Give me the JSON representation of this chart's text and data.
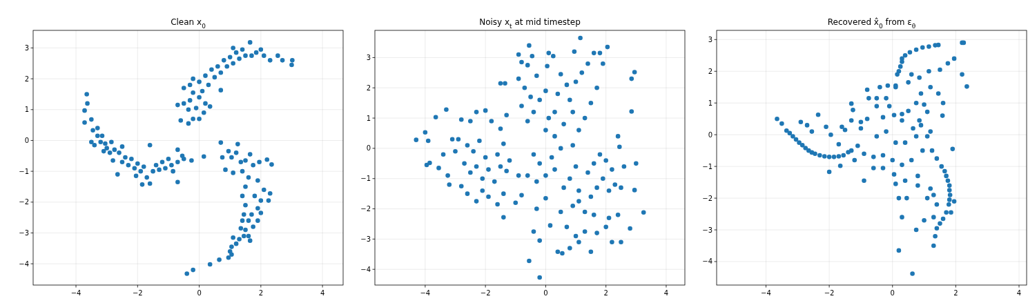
{
  "chart_data": [
    {
      "type": "scatter",
      "title": "Clean x$_{0}$",
      "marker": "circle",
      "grid": true,
      "xlim": [
        -5.39,
        4.67
      ],
      "ylim": [
        -4.69,
        3.57
      ],
      "xticks": [
        -4,
        -2,
        0,
        2,
        4
      ],
      "yticks": [
        -4,
        -3,
        -2,
        -1,
        0,
        1,
        2,
        3
      ],
      "color": "#1f77b4",
      "x": [
        -3.65,
        -3.63,
        -3.72,
        -3.72,
        -3.5,
        -3.45,
        -3.3,
        -3.3,
        -3.15,
        -3.5,
        -3.4,
        -3.2,
        -3.05,
        -3.0,
        -2.85,
        -3.1,
        -2.9,
        -2.75,
        -2.6,
        -2.8,
        -2.5,
        -2.4,
        -2.3,
        -2.2,
        -2.1,
        -2.0,
        -1.9,
        -1.8,
        -2.05,
        -1.85,
        -1.6,
        -1.7,
        -1.5,
        -1.4,
        -1.3,
        -1.2,
        -1.1,
        -1.0,
        -0.9,
        -0.85,
        -0.7,
        -0.7,
        -0.55,
        -0.5,
        -0.25,
        -0.7,
        -1.6,
        -2.5,
        -2.65,
        -0.35,
        -0.6,
        -0.2,
        0.0,
        -0.35,
        -0.1,
        0.15,
        -0.7,
        -0.5,
        -0.3,
        -0.2,
        0.0,
        0.2,
        0.35,
        -0.5,
        -0.3,
        -0.2,
        0.0,
        0.1,
        0.2,
        0.3,
        0.4,
        0.5,
        0.6,
        0.7,
        0.8,
        0.9,
        0.7,
        1.0,
        1.1,
        1.2,
        1.3,
        1.4,
        1.5,
        1.65,
        1.7,
        1.85,
        2.0,
        2.1,
        2.3,
        2.55,
        2.7,
        3.02,
        3.0,
        1.1,
        0.7,
        0.15,
        0.75,
        0.95,
        1.05,
        1.25,
        1.2,
        1.35,
        1.5,
        1.65,
        1.75,
        1.95,
        2.2,
        2.35,
        0.85,
        1.1,
        1.4,
        1.6,
        1.5,
        1.9,
        2.1,
        2.3,
        1.4,
        1.8,
        2.0,
        2.25,
        1.5,
        1.9,
        1.45,
        1.7,
        2.0,
        1.4,
        1.6,
        1.9,
        1.5,
        1.75,
        1.35,
        1.6,
        1.65,
        1.45,
        1.3,
        1.1,
        1.2,
        1.05,
        1.0,
        0.95,
        1.05,
        0.65,
        0.35,
        -0.2,
        -0.4
      ],
      "values": [
        1.5,
        1.2,
        0.97,
        0.58,
        0.68,
        0.33,
        0.4,
        0.15,
        0.15,
        -0.05,
        -0.15,
        -0.05,
        -0.1,
        -0.25,
        -0.05,
        -0.35,
        -0.4,
        -0.3,
        -0.4,
        -0.65,
        -0.7,
        -0.55,
        -0.8,
        -0.6,
        -0.9,
        -0.75,
        -1.0,
        -0.85,
        -1.15,
        -1.43,
        -1.4,
        -1.2,
        -1.0,
        -0.8,
        -0.95,
        -0.7,
        -0.9,
        -0.6,
        -0.8,
        -1.0,
        -0.7,
        -0.3,
        -0.5,
        -0.6,
        -0.65,
        -1.35,
        -0.15,
        -0.2,
        -1.1,
        0.55,
        0.65,
        0.7,
        0.7,
        1.0,
        1.05,
        0.9,
        1.15,
        1.2,
        1.3,
        1.55,
        1.4,
        1.2,
        1.1,
        1.7,
        1.8,
        2.0,
        1.9,
        1.6,
        2.1,
        1.8,
        2.3,
        2.05,
        2.4,
        2.2,
        2.6,
        2.4,
        1.63,
        2.7,
        2.5,
        2.85,
        2.65,
        2.95,
        2.75,
        3.18,
        2.75,
        2.85,
        2.95,
        2.75,
        2.6,
        2.75,
        2.6,
        2.6,
        2.45,
        3.0,
        -0.07,
        -0.52,
        -0.55,
        -0.35,
        -0.55,
        -0.12,
        -0.4,
        -0.7,
        -0.65,
        -0.45,
        -0.8,
        -0.7,
        -0.62,
        -0.78,
        -0.95,
        -1.05,
        -1.0,
        -1.2,
        -1.5,
        -1.3,
        -1.6,
        -1.72,
        -1.8,
        -1.8,
        -1.95,
        -1.95,
        -2.1,
        -2.2,
        -2.4,
        -2.4,
        -2.35,
        -2.6,
        -2.6,
        -2.6,
        -2.9,
        -2.8,
        -2.85,
        -3.1,
        -3.25,
        -3.1,
        -3.2,
        -3.15,
        -3.35,
        -3.45,
        -3.6,
        -3.8,
        -3.7,
        -3.87,
        -4.02,
        -4.2,
        -4.32
      ]
    },
    {
      "type": "scatter",
      "title": "Noisy x$_{t}$ at mid timestep",
      "marker": "circle",
      "grid": true,
      "xlim": [
        -5.67,
        4.62
      ],
      "ylim": [
        -4.52,
        3.9
      ],
      "xticks": [
        -4,
        -2,
        0,
        2,
        4
      ],
      "yticks": [
        -4,
        -3,
        -2,
        -1,
        0,
        1,
        2,
        3
      ],
      "color": "#1f77b4",
      "x": [
        -4.3,
        -4.0,
        -3.9,
        -3.95,
        -3.85,
        -3.65,
        -3.3,
        -3.55,
        -3.2,
        -3.25,
        -0.55,
        1.15,
        0.95,
        2.05,
        2.95,
        2.85,
        2.85,
        3.25,
        3.0,
        2.95,
        -0.2,
        -0.55,
        0.55,
        1.5,
        2.8,
        -1.4,
        -0.2,
        0.4,
        -2.8,
        -2.5,
        -2.3,
        -2.0,
        -1.8,
        -2.9,
        -2.6,
        -2.4,
        -2.2,
        -2.0,
        -1.6,
        -1.4,
        -1.2,
        -2.7,
        -2.5,
        -2.3,
        -2.1,
        -1.9,
        -1.7,
        -1.5,
        -1.3,
        -0.9,
        -2.8,
        -2.6,
        -2.3,
        -2.1,
        -1.9,
        -1.6,
        -1.4,
        -1.0,
        -0.8,
        -3.0,
        -3.4,
        -3.1,
        -1.5,
        -1.3,
        -1.5,
        -1.35,
        -0.9,
        -0.8,
        -0.6,
        -0.45,
        -0.9,
        -0.7,
        -0.5,
        -0.3,
        0.05,
        0.1,
        0.25,
        0.0,
        -0.2,
        0.4,
        0.5,
        0.7,
        0.8,
        0.3,
        0.1,
        -0.4,
        -0.8,
        -0.6,
        0.0,
        0.3,
        0.6,
        0.9,
        1.0,
        1.2,
        1.4,
        1.6,
        1.8,
        1.9,
        1.7,
        1.5,
        1.3,
        1.1,
        0.9,
        0.5,
        0.2,
        -0.2,
        -0.4,
        -0.6,
        -0.3,
        0.0,
        0.3,
        0.6,
        0.8,
        1.0,
        1.4,
        1.6,
        1.8,
        2.0,
        2.2,
        2.4,
        2.45,
        2.6,
        1.1,
        1.5,
        1.7,
        1.9,
        2.1,
        2.3,
        2.5,
        0.9,
        1.1,
        1.3,
        1.6,
        2.1,
        2.4,
        0.5,
        0.0,
        -0.3,
        0.7,
        1.0,
        1.3,
        1.7,
        2.0,
        2.2,
        2.5,
        0.8,
        1.1,
        -0.4,
        0.15
      ],
      "values": [
        0.28,
        0.53,
        0.25,
        -0.55,
        -0.48,
        1.03,
        1.28,
        -0.65,
        -1.2,
        -0.9,
        3.4,
        3.65,
        3.2,
        3.35,
        2.52,
        2.3,
        1.22,
        -2.12,
        -0.5,
        -1.38,
        -4.27,
        -3.72,
        -3.47,
        -3.42,
        -2.65,
        -2.28,
        -3.05,
        -3.42,
        0.95,
        0.9,
        1.2,
        1.25,
        0.9,
        0.3,
        0.1,
        -0.1,
        0.25,
        -0.3,
        -0.2,
        0.15,
        -0.4,
        -0.5,
        -0.8,
        -0.6,
        -1.0,
        -0.7,
        -1.1,
        -0.6,
        -0.75,
        -0.9,
        -1.25,
        -1.5,
        -1.75,
        -1.4,
        -1.6,
        -1.85,
        -1.5,
        -1.8,
        -1.55,
        -0.1,
        -0.2,
        0.3,
        0.65,
        1.1,
        2.15,
        2.15,
        2.3,
        2.85,
        2.75,
        3.05,
        3.1,
        2.0,
        1.7,
        2.4,
        2.72,
        3.15,
        3.05,
        1.9,
        1.6,
        1.8,
        2.45,
        2.1,
        1.6,
        1.2,
        1.0,
        1.2,
        1.4,
        0.9,
        0.6,
        0.4,
        0.8,
        1.2,
        2.2,
        2.5,
        2.8,
        3.15,
        3.15,
        2.8,
        2.0,
        1.5,
        1.0,
        0.6,
        0.1,
        0.0,
        -0.3,
        -0.5,
        -0.2,
        -0.9,
        -1.1,
        -0.9,
        -0.7,
        -1.3,
        -1.0,
        -0.6,
        -0.8,
        -0.5,
        -0.2,
        -0.4,
        -0.7,
        0.4,
        0.05,
        -0.6,
        -1.4,
        -1.6,
        -1.3,
        -1.0,
        -1.4,
        -1.2,
        -1.3,
        -1.9,
        -1.75,
        -2.1,
        -2.2,
        -2.3,
        -2.2,
        -2.1,
        -1.65,
        -2.0,
        -2.6,
        -2.9,
        -2.75,
        -2.8,
        -2.6,
        -3.1,
        -3.1,
        -3.3,
        -3.1,
        -2.75,
        -2.55
      ]
    },
    {
      "type": "scatter",
      "title": "Recovered x̂$_{0}$ from ε$_{θ}$",
      "marker": "circle",
      "grid": true,
      "xlim": [
        -5.56,
        4.24
      ],
      "ylim": [
        -4.74,
        3.29
      ],
      "xticks": [
        -4,
        -2,
        0,
        2,
        4
      ],
      "yticks": [
        -4,
        -3,
        -2,
        -1,
        0,
        1,
        2,
        3
      ],
      "color": "#1f77b4",
      "x": [
        -3.65,
        -3.5,
        -3.35,
        -3.25,
        -3.15,
        -3.05,
        -2.95,
        -2.85,
        -2.75,
        -2.65,
        -2.55,
        -2.45,
        -2.3,
        -2.15,
        -2.0,
        -1.85,
        -1.7,
        -1.55,
        -1.4,
        -1.3,
        0.1,
        0.2,
        0.3,
        0.4,
        0.55,
        0.75,
        0.95,
        1.15,
        1.35,
        1.45,
        0.15,
        0.25,
        0.3,
        1.25,
        1.4,
        1.55,
        1.7,
        1.8,
        1.82,
        1.78,
        1.7,
        1.6,
        1.5,
        1.4,
        1.35,
        1.3,
        1.75,
        1.8,
        1.8,
        1.65,
        2.2,
        2.25,
        2.2,
        2.35,
        1.95,
        1.75,
        1.5,
        1.15,
        1.2,
        0.85,
        0.6,
        0.5,
        0.1,
        -0.15,
        -0.4,
        -0.8,
        -0.5,
        -0.2,
        -0.75,
        -1.3,
        -1.25,
        -0.5,
        -0.1,
        0.05,
        0.3,
        0.5,
        0.75,
        0.9,
        1.0,
        1.1,
        1.45,
        1.6,
        1.58,
        0.85,
        0.9,
        0.65,
        0.3,
        -0.3,
        -0.8,
        -1.0,
        -1.3,
        -1.5,
        -1.0,
        -0.5,
        -0.2,
        0.1,
        0.4,
        0.75,
        1.1,
        1.2,
        0.95,
        0.6,
        0.3,
        0.0,
        -0.3,
        -0.6,
        -0.9,
        -1.1,
        -1.2,
        -0.9,
        -0.6,
        -0.3,
        0.05,
        0.1,
        0.4,
        0.8,
        0.8,
        1.2,
        1.3,
        1.1,
        0.2,
        0.45,
        0.3,
        0.75,
        1.0,
        1.3,
        1.4,
        0.2,
        0.63,
        1.9,
        1.95,
        1.85,
        -2.0,
        -2.35,
        -2.9,
        -2.1,
        -1.95,
        -1.6,
        -1.7,
        -2.7,
        -2.55,
        -1.65
      ],
      "values": [
        0.5,
        0.35,
        0.13,
        0.05,
        -0.05,
        -0.15,
        -0.25,
        -0.33,
        -0.42,
        -0.5,
        -0.56,
        -0.6,
        -0.65,
        -0.68,
        -0.7,
        -0.7,
        -0.68,
        -0.65,
        -0.55,
        -0.5,
        1.5,
        2.0,
        2.3,
        2.5,
        2.6,
        2.68,
        2.75,
        2.78,
        2.82,
        2.83,
        1.9,
        2.15,
        2.4,
        -0.5,
        -0.75,
        -1.0,
        -1.3,
        -1.6,
        -1.9,
        -2.2,
        -2.45,
        -2.65,
        -2.8,
        -2.95,
        -3.2,
        -3.5,
        -1.45,
        -1.75,
        -2.05,
        -1.15,
        2.9,
        2.9,
        1.9,
        1.52,
        2.4,
        2.25,
        2.05,
        2.0,
        1.5,
        1.8,
        1.9,
        1.65,
        1.55,
        1.55,
        1.5,
        1.42,
        1.15,
        1.15,
        1.15,
        0.98,
        0.78,
        0.9,
        0.9,
        0.62,
        0.65,
        0.75,
        1.0,
        1.3,
        0.95,
        0.72,
        1.3,
        1.0,
        0.6,
        0.45,
        0.3,
        0.2,
        0.45,
        0.55,
        0.5,
        0.4,
        0.45,
        0.15,
        0.2,
        -0.05,
        0.1,
        -0.25,
        -0.25,
        -0.05,
        -0.05,
        0.1,
        -0.5,
        -0.8,
        -0.95,
        -0.8,
        -0.65,
        -0.7,
        -0.6,
        -0.35,
        -0.8,
        -1.45,
        -1.05,
        -1.05,
        -1.25,
        -1.55,
        -1.45,
        -1.3,
        -1.6,
        -1.7,
        -1.9,
        -2.0,
        -2.0,
        -2.0,
        -2.6,
        -3.0,
        -2.7,
        -2.6,
        -2.2,
        -3.65,
        -4.38,
        -0.45,
        -2.1,
        -2.45,
        -1.17,
        0.63,
        0.4,
        0.25,
        0.0,
        0.25,
        -0.3,
        0.3,
        0.1,
        -0.98
      ]
    }
  ]
}
